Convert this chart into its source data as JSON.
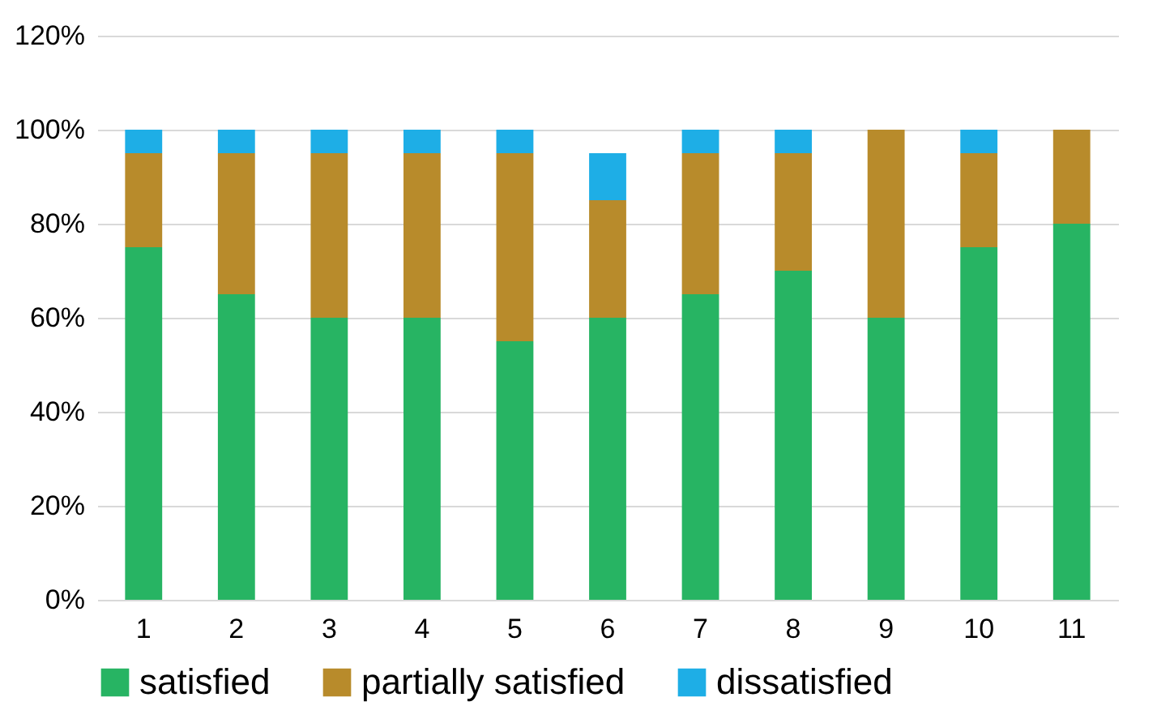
{
  "chart_data": {
    "type": "bar",
    "stacked": true,
    "categories": [
      "1",
      "2",
      "3",
      "4",
      "5",
      "6",
      "7",
      "8",
      "9",
      "10",
      "11"
    ],
    "series": [
      {
        "name": "satisfied",
        "color": "#27b463",
        "values": [
          75,
          65,
          60,
          60,
          55,
          60,
          65,
          70,
          60,
          75,
          80
        ]
      },
      {
        "name": "partially satisfied",
        "color": "#b88b2b",
        "values": [
          20,
          30,
          35,
          35,
          40,
          25,
          30,
          25,
          40,
          20,
          20
        ]
      },
      {
        "name": "dissatisfied",
        "color": "#1eaee6",
        "values": [
          5,
          5,
          5,
          5,
          5,
          10,
          5,
          5,
          0,
          5,
          0
        ]
      }
    ],
    "ylim": [
      0,
      120
    ],
    "yticks": [
      {
        "value": 0,
        "label": "0%"
      },
      {
        "value": 20,
        "label": "20%"
      },
      {
        "value": 40,
        "label": "40%"
      },
      {
        "value": 60,
        "label": "60%"
      },
      {
        "value": 80,
        "label": "80%"
      },
      {
        "value": 100,
        "label": "100%"
      },
      {
        "value": 120,
        "label": "120%"
      }
    ],
    "grid": "y",
    "legend": "bottom"
  }
}
